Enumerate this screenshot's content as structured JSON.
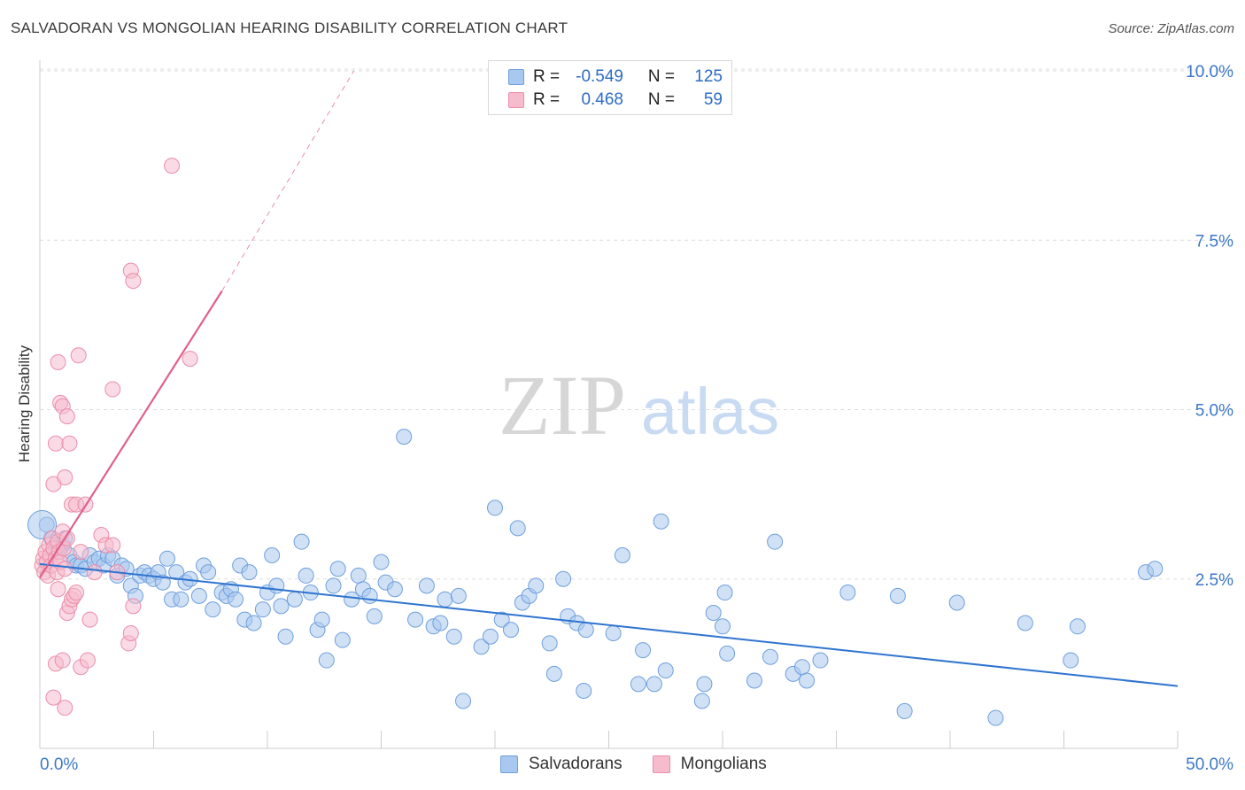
{
  "title": "SALVADORAN VS MONGOLIAN HEARING DISABILITY CORRELATION CHART",
  "source": "Source: ZipAtlas.com",
  "watermark": {
    "zip": "ZIP",
    "atlas": "atlas"
  },
  "legend_top": {
    "rows": [
      {
        "r_label": "R =",
        "r_value": "-0.549",
        "n_label": "N =",
        "n_value": "125"
      },
      {
        "r_label": "R =",
        "r_value": "0.468",
        "n_label": "N =",
        "n_value": "59"
      }
    ]
  },
  "legend_bottom": [
    "Salvadorans",
    "Mongolians"
  ],
  "colors": {
    "blue_fill": "#a9c8ef",
    "blue_stroke": "#6f9fdc",
    "blue_line": "#2f74d0",
    "pink_fill": "#f6bccd",
    "pink_stroke": "#ea8eaa",
    "pink_line": "#e0608c",
    "tick_text": "#3c78c8",
    "grid": "#dddddd"
  },
  "chart_data": {
    "type": "scatter",
    "title": "SALVADORAN VS MONGOLIAN HEARING DISABILITY CORRELATION CHART",
    "xlabel": "",
    "ylabel": "Hearing Disability",
    "xlim": [
      0,
      50
    ],
    "ylim": [
      0,
      10.5
    ],
    "x_tick_labels": [
      "0.0%",
      "50.0%"
    ],
    "y_ticks": [
      2.5,
      5.0,
      7.5,
      10.0
    ],
    "y_tick_labels": [
      "2.5%",
      "5.0%",
      "7.5%",
      "10.0%"
    ],
    "grid": true,
    "series": [
      {
        "name": "Salvadorans",
        "r": -0.549,
        "n": 125,
        "trend": {
          "x0": 0,
          "y0": 2.72,
          "x1": 50,
          "y1": 0.92
        },
        "points": [
          [
            0.3,
            3.3
          ],
          [
            0.5,
            3.1
          ],
          [
            0.7,
            3.0
          ],
          [
            0.8,
            2.9
          ],
          [
            1.0,
            3.0
          ],
          [
            1.1,
            3.1
          ],
          [
            1.3,
            2.85
          ],
          [
            1.5,
            2.75
          ],
          [
            1.6,
            2.7
          ],
          [
            1.8,
            2.7
          ],
          [
            2.0,
            2.65
          ],
          [
            2.2,
            2.85
          ],
          [
            2.4,
            2.75
          ],
          [
            2.6,
            2.8
          ],
          [
            2.8,
            2.7
          ],
          [
            3.0,
            2.85
          ],
          [
            3.2,
            2.8
          ],
          [
            3.4,
            2.55
          ],
          [
            3.6,
            2.7
          ],
          [
            3.8,
            2.65
          ],
          [
            4.0,
            2.4
          ],
          [
            4.2,
            2.25
          ],
          [
            4.4,
            2.55
          ],
          [
            4.6,
            2.6
          ],
          [
            4.8,
            2.55
          ],
          [
            5.0,
            2.5
          ],
          [
            5.2,
            2.6
          ],
          [
            5.4,
            2.45
          ],
          [
            5.6,
            2.8
          ],
          [
            5.8,
            2.2
          ],
          [
            6.0,
            2.6
          ],
          [
            6.2,
            2.2
          ],
          [
            6.4,
            2.45
          ],
          [
            6.6,
            2.5
          ],
          [
            7.0,
            2.25
          ],
          [
            7.2,
            2.7
          ],
          [
            7.4,
            2.6
          ],
          [
            7.6,
            2.05
          ],
          [
            8.0,
            2.3
          ],
          [
            8.2,
            2.25
          ],
          [
            8.4,
            2.35
          ],
          [
            8.6,
            2.2
          ],
          [
            8.8,
            2.7
          ],
          [
            9.0,
            1.9
          ],
          [
            9.2,
            2.6
          ],
          [
            9.4,
            1.85
          ],
          [
            9.8,
            2.05
          ],
          [
            10.0,
            2.3
          ],
          [
            10.2,
            2.85
          ],
          [
            10.4,
            2.4
          ],
          [
            10.6,
            2.1
          ],
          [
            10.8,
            1.65
          ],
          [
            11.2,
            2.2
          ],
          [
            11.5,
            3.05
          ],
          [
            11.7,
            2.55
          ],
          [
            11.9,
            2.3
          ],
          [
            12.2,
            1.75
          ],
          [
            12.4,
            1.9
          ],
          [
            12.6,
            1.3
          ],
          [
            12.9,
            2.4
          ],
          [
            13.1,
            2.65
          ],
          [
            13.3,
            1.6
          ],
          [
            13.7,
            2.2
          ],
          [
            14.0,
            2.55
          ],
          [
            14.2,
            2.35
          ],
          [
            14.5,
            2.25
          ],
          [
            14.7,
            1.95
          ],
          [
            15.0,
            2.75
          ],
          [
            15.2,
            2.45
          ],
          [
            15.6,
            2.35
          ],
          [
            16.0,
            4.6
          ],
          [
            16.5,
            1.9
          ],
          [
            17.0,
            2.4
          ],
          [
            17.3,
            1.8
          ],
          [
            17.6,
            1.85
          ],
          [
            17.8,
            2.2
          ],
          [
            18.2,
            1.65
          ],
          [
            18.4,
            2.25
          ],
          [
            18.6,
            0.7
          ],
          [
            19.4,
            1.5
          ],
          [
            19.8,
            1.65
          ],
          [
            20.0,
            3.55
          ],
          [
            20.3,
            1.9
          ],
          [
            20.7,
            1.75
          ],
          [
            21.0,
            3.25
          ],
          [
            21.2,
            2.15
          ],
          [
            21.5,
            2.25
          ],
          [
            21.8,
            2.4
          ],
          [
            22.4,
            1.55
          ],
          [
            22.6,
            1.1
          ],
          [
            23.0,
            2.5
          ],
          [
            23.2,
            1.95
          ],
          [
            23.6,
            1.85
          ],
          [
            23.9,
            0.85
          ],
          [
            24.0,
            1.75
          ],
          [
            25.2,
            1.7
          ],
          [
            25.6,
            2.85
          ],
          [
            26.3,
            0.95
          ],
          [
            26.5,
            1.45
          ],
          [
            27.0,
            0.95
          ],
          [
            27.3,
            3.35
          ],
          [
            27.5,
            1.15
          ],
          [
            29.1,
            0.7
          ],
          [
            29.2,
            0.95
          ],
          [
            29.6,
            2.0
          ],
          [
            30.0,
            1.8
          ],
          [
            30.1,
            2.3
          ],
          [
            30.2,
            1.4
          ],
          [
            31.4,
            1.0
          ],
          [
            32.1,
            1.35
          ],
          [
            32.3,
            3.05
          ],
          [
            33.1,
            1.1
          ],
          [
            33.5,
            1.2
          ],
          [
            33.7,
            1.0
          ],
          [
            34.3,
            1.3
          ],
          [
            35.5,
            2.3
          ],
          [
            37.7,
            2.25
          ],
          [
            38.0,
            0.55
          ],
          [
            40.3,
            2.15
          ],
          [
            42.0,
            0.45
          ],
          [
            43.3,
            1.85
          ],
          [
            45.3,
            1.3
          ],
          [
            45.6,
            1.8
          ],
          [
            48.6,
            2.6
          ],
          [
            49.0,
            2.65
          ]
        ]
      },
      {
        "name": "Mongolians",
        "r": 0.468,
        "n": 59,
        "trend": {
          "x0": 0,
          "y0": 2.52,
          "x1": 8.0,
          "y1": 6.75,
          "dashed_to": {
            "x": 13.8,
            "y": 10.0
          }
        },
        "points": [
          [
            0.1,
            2.7
          ],
          [
            0.15,
            2.8
          ],
          [
            0.2,
            2.6
          ],
          [
            0.25,
            2.9
          ],
          [
            0.3,
            2.75
          ],
          [
            0.35,
            2.55
          ],
          [
            0.4,
            3.0
          ],
          [
            0.45,
            2.85
          ],
          [
            0.5,
            2.7
          ],
          [
            0.55,
            3.1
          ],
          [
            0.6,
            2.95
          ],
          [
            0.7,
            2.8
          ],
          [
            0.75,
            2.6
          ],
          [
            0.8,
            3.05
          ],
          [
            0.85,
            2.9
          ],
          [
            0.9,
            2.75
          ],
          [
            1.0,
            3.2
          ],
          [
            1.05,
            2.95
          ],
          [
            1.1,
            2.65
          ],
          [
            1.2,
            3.1
          ],
          [
            0.6,
            3.9
          ],
          [
            0.7,
            4.5
          ],
          [
            0.8,
            5.7
          ],
          [
            0.9,
            5.1
          ],
          [
            1.0,
            5.05
          ],
          [
            1.1,
            4.0
          ],
          [
            1.2,
            4.9
          ],
          [
            1.3,
            4.5
          ],
          [
            1.4,
            3.6
          ],
          [
            1.6,
            3.6
          ],
          [
            1.7,
            5.8
          ],
          [
            2.0,
            3.6
          ],
          [
            2.4,
            2.6
          ],
          [
            2.7,
            3.15
          ],
          [
            2.9,
            3.0
          ],
          [
            3.2,
            5.3
          ],
          [
            3.4,
            2.6
          ],
          [
            3.9,
            1.55
          ],
          [
            4.0,
            1.7
          ],
          [
            4.1,
            2.1
          ],
          [
            1.2,
            2.0
          ],
          [
            1.3,
            2.1
          ],
          [
            1.4,
            2.2
          ],
          [
            1.5,
            2.25
          ],
          [
            1.6,
            2.3
          ],
          [
            1.8,
            1.2
          ],
          [
            2.1,
            1.3
          ],
          [
            2.2,
            1.9
          ],
          [
            0.6,
            0.75
          ],
          [
            1.1,
            0.6
          ],
          [
            0.7,
            1.25
          ],
          [
            1.0,
            1.3
          ],
          [
            0.8,
            2.35
          ],
          [
            4.0,
            7.05
          ],
          [
            4.1,
            6.9
          ],
          [
            5.8,
            8.6
          ],
          [
            6.6,
            5.75
          ],
          [
            1.8,
            2.9
          ],
          [
            3.2,
            3.0
          ]
        ]
      }
    ]
  }
}
